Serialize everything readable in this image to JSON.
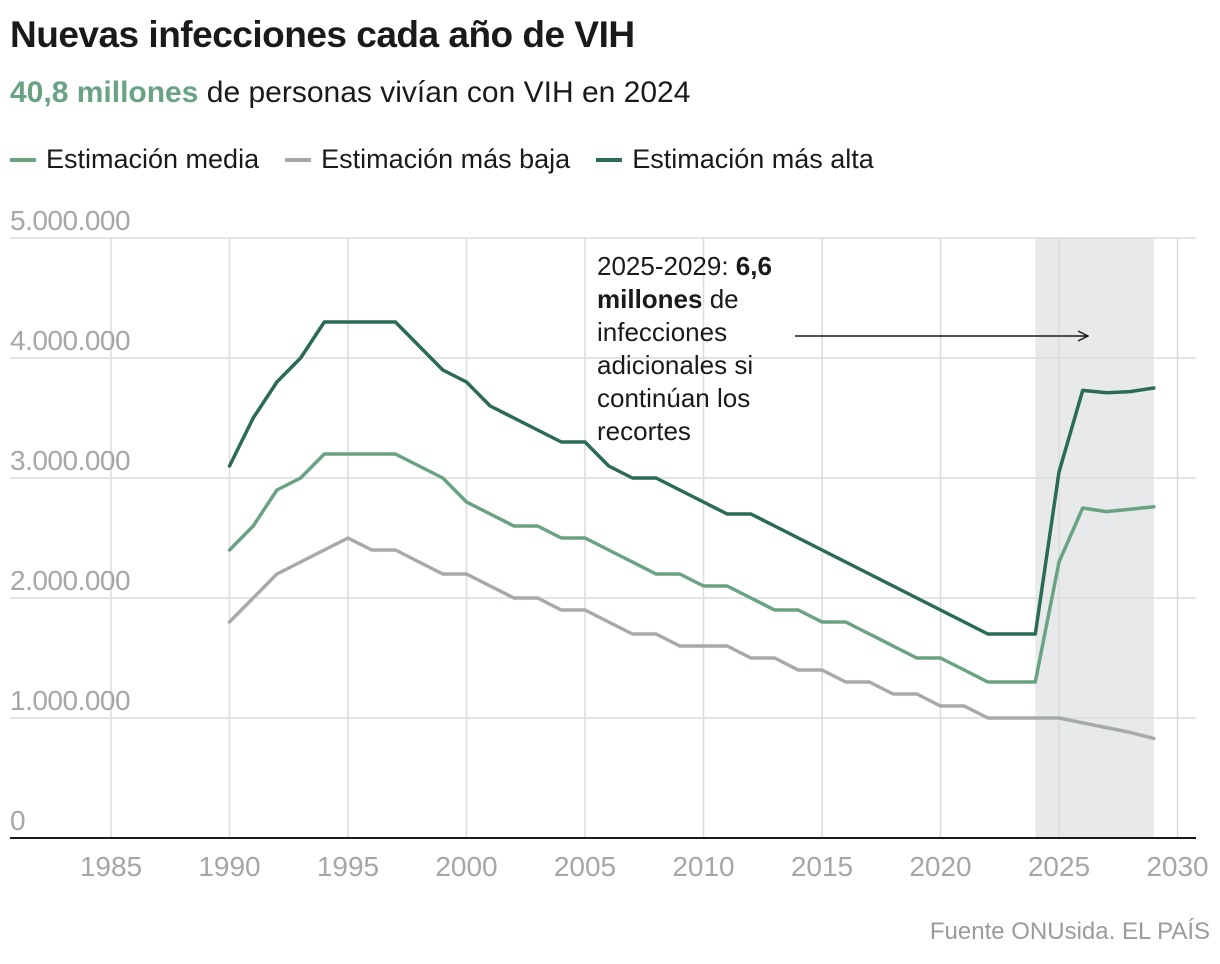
{
  "header": {
    "title": "Nuevas infecciones cada año de VIH",
    "subtitle_highlight": "40,8 millones",
    "subtitle_rest": " de personas vivían con VIH en 2024"
  },
  "annotation": {
    "part1": "2025-2029: ",
    "bold": "6,6 millones",
    "part2": " de infecciones adicionales si continúan los recortes"
  },
  "source": "Fuente ONUsida. EL PAÍS",
  "colors": {
    "media": "#6aa383",
    "baja": "#a6aaa8",
    "alta": "#2a6b55",
    "shade": "#e8e9ea",
    "grid": "#dcdcdc",
    "tick": "#a6a6a6"
  },
  "chart_data": {
    "type": "line",
    "title": "Nuevas infecciones cada año de VIH",
    "xlabel": "",
    "ylabel": "",
    "xlim": [
      1980,
      2031
    ],
    "ylim": [
      0,
      5000000
    ],
    "x_ticks": [
      1985,
      1990,
      1995,
      2000,
      2005,
      2010,
      2015,
      2020,
      2025,
      2030
    ],
    "x_tick_labels": [
      "1985",
      "1990",
      "1995",
      "2000",
      "2005",
      "2010",
      "2015",
      "2020",
      "2025",
      "2030"
    ],
    "y_ticks": [
      0,
      1000000,
      2000000,
      3000000,
      4000000,
      5000000
    ],
    "y_tick_labels": [
      "0",
      "1.000.000",
      "2.000.000",
      "3.000.000",
      "4.000.000",
      "5.000.000"
    ],
    "projection_range": [
      2024,
      2029
    ],
    "series": [
      {
        "key": "media",
        "name": "Estimación media",
        "x": [
          1990,
          1991,
          1992,
          1993,
          1994,
          1995,
          1996,
          1997,
          1998,
          1999,
          2000,
          2001,
          2002,
          2003,
          2004,
          2005,
          2006,
          2007,
          2008,
          2009,
          2010,
          2011,
          2012,
          2013,
          2014,
          2015,
          2016,
          2017,
          2018,
          2019,
          2020,
          2021,
          2022,
          2023,
          2024,
          2025,
          2026,
          2027,
          2028,
          2029
        ],
        "values": [
          2400000,
          2600000,
          2900000,
          3000000,
          3200000,
          3200000,
          3200000,
          3200000,
          3100000,
          3000000,
          2800000,
          2700000,
          2600000,
          2600000,
          2500000,
          2500000,
          2400000,
          2300000,
          2200000,
          2200000,
          2100000,
          2100000,
          2000000,
          1900000,
          1900000,
          1800000,
          1800000,
          1700000,
          1600000,
          1500000,
          1500000,
          1400000,
          1300000,
          1300000,
          1300000,
          2300000,
          2750000,
          2720000,
          2740000,
          2760000
        ]
      },
      {
        "key": "baja",
        "name": "Estimación más baja",
        "x": [
          1990,
          1991,
          1992,
          1993,
          1994,
          1995,
          1996,
          1997,
          1998,
          1999,
          2000,
          2001,
          2002,
          2003,
          2004,
          2005,
          2006,
          2007,
          2008,
          2009,
          2010,
          2011,
          2012,
          2013,
          2014,
          2015,
          2016,
          2017,
          2018,
          2019,
          2020,
          2021,
          2022,
          2023,
          2024,
          2025,
          2026,
          2027,
          2028,
          2029
        ],
        "values": [
          1800000,
          2000000,
          2200000,
          2300000,
          2400000,
          2500000,
          2400000,
          2400000,
          2300000,
          2200000,
          2200000,
          2100000,
          2000000,
          2000000,
          1900000,
          1900000,
          1800000,
          1700000,
          1700000,
          1600000,
          1600000,
          1600000,
          1500000,
          1500000,
          1400000,
          1400000,
          1300000,
          1300000,
          1200000,
          1200000,
          1100000,
          1100000,
          1000000,
          1000000,
          1000000,
          1000000,
          960000,
          920000,
          880000,
          830000
        ]
      },
      {
        "key": "alta",
        "name": "Estimación más alta",
        "x": [
          1990,
          1991,
          1992,
          1993,
          1994,
          1995,
          1996,
          1997,
          1998,
          1999,
          2000,
          2001,
          2002,
          2003,
          2004,
          2005,
          2006,
          2007,
          2008,
          2009,
          2010,
          2011,
          2012,
          2013,
          2014,
          2015,
          2016,
          2017,
          2018,
          2019,
          2020,
          2021,
          2022,
          2023,
          2024,
          2025,
          2026,
          2027,
          2028,
          2029
        ],
        "values": [
          3100000,
          3500000,
          3800000,
          4000000,
          4300000,
          4300000,
          4300000,
          4300000,
          4100000,
          3900000,
          3800000,
          3600000,
          3500000,
          3400000,
          3300000,
          3300000,
          3100000,
          3000000,
          3000000,
          2900000,
          2800000,
          2700000,
          2700000,
          2600000,
          2500000,
          2400000,
          2300000,
          2200000,
          2100000,
          2000000,
          1900000,
          1800000,
          1700000,
          1700000,
          1700000,
          3050000,
          3730000,
          3710000,
          3720000,
          3750000
        ]
      }
    ]
  }
}
